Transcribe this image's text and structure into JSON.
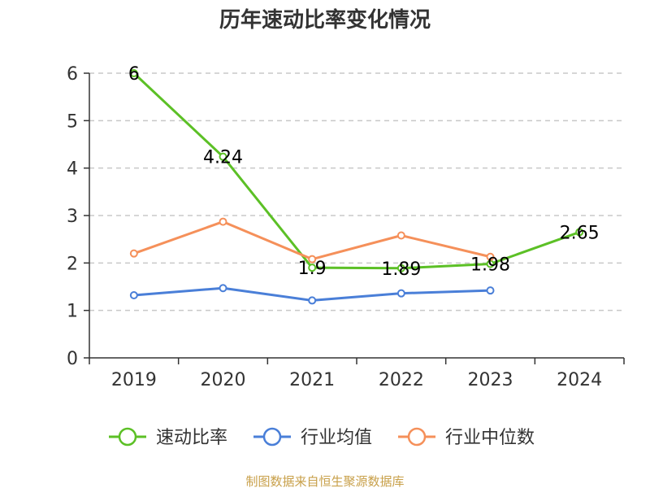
{
  "chart_data": {
    "type": "line",
    "title": "历年速动比率变化情况",
    "categories": [
      "2019",
      "2020",
      "2021",
      "2022",
      "2023",
      "2024"
    ],
    "ylim": [
      0,
      6
    ],
    "yticks": [
      0,
      1,
      2,
      3,
      4,
      5,
      6
    ],
    "grid": true,
    "legend_position": "bottom",
    "series": [
      {
        "name": "速动比率",
        "color": "#5cc026",
        "values": [
          6,
          4.24,
          1.9,
          1.89,
          1.98,
          2.65
        ],
        "labels": [
          "6",
          "4.24",
          "1.9",
          "1.89",
          "1.98",
          "2.65"
        ],
        "show_labels": true
      },
      {
        "name": "行业均值",
        "color": "#4a7fd8",
        "values": [
          1.32,
          1.47,
          1.21,
          1.36,
          1.42,
          null
        ],
        "show_labels": false
      },
      {
        "name": "行业中位数",
        "color": "#f5905a",
        "values": [
          2.2,
          2.87,
          2.08,
          2.58,
          2.13,
          null
        ],
        "show_labels": false
      }
    ]
  },
  "footer": {
    "source_text": "制图数据来自恒生聚源数据库"
  }
}
